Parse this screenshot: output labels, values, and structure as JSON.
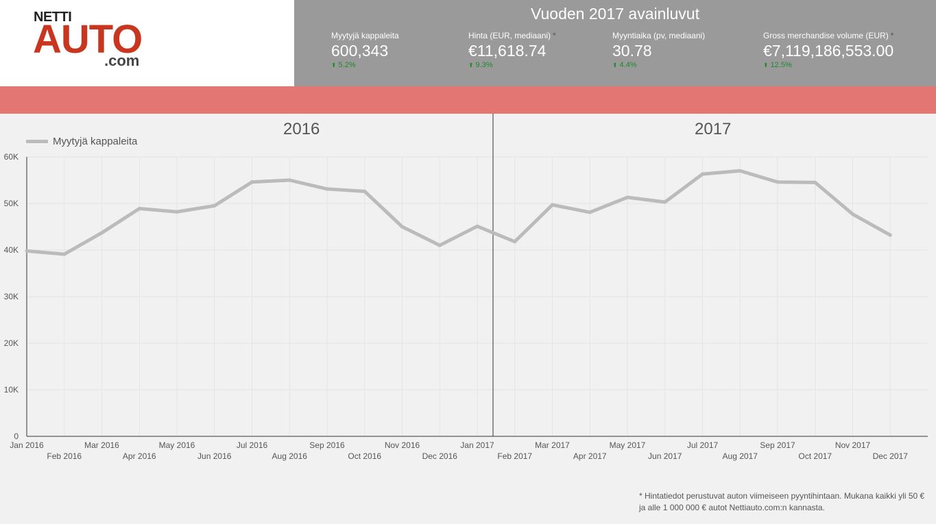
{
  "logo": {
    "top": "NETTI",
    "main": "AUTO",
    "suffix": ".com"
  },
  "kpi": {
    "title": "Vuoden 2017 avainluvut",
    "items": [
      {
        "label": "Myytyjä kappaleita",
        "star": "",
        "value": "600,343",
        "delta": "5.2%"
      },
      {
        "label": "Hinta (EUR, mediaani)",
        "star": "*",
        "value": "€11,618.74",
        "delta": "9.3%"
      },
      {
        "label": "Myyntiaika (pv, mediaani)",
        "star": "",
        "value": "30.78",
        "delta": "4.4%"
      },
      {
        "label": "Gross merchandise volume (EUR)",
        "star": "*",
        "value": "€7,119,186,553.00",
        "delta": "12.5%"
      }
    ],
    "delta_color": "#1d8a2e"
  },
  "colors": {
    "band": "#e37573",
    "panel": "#9a9a9a",
    "line": "#bbbbbb"
  },
  "year_labels": [
    "2016",
    "2017"
  ],
  "chart_data": {
    "type": "line",
    "title": "",
    "legend": "top-left",
    "grid": true,
    "ylim": [
      0,
      60000
    ],
    "yticks": [
      "0",
      "10K",
      "20K",
      "30K",
      "40K",
      "50K",
      "60K"
    ],
    "x": [
      "Jan 2016",
      "Feb 2016",
      "Mar 2016",
      "Apr 2016",
      "May 2016",
      "Jun 2016",
      "Jul 2016",
      "Aug 2016",
      "Sep 2016",
      "Oct 2016",
      "Nov 2016",
      "Dec 2016",
      "Jan 2017",
      "Feb 2017",
      "Mar 2017",
      "Apr 2017",
      "May 2017",
      "Jun 2017",
      "Jul 2017",
      "Aug 2017",
      "Sep 2017",
      "Oct 2017",
      "Nov 2017",
      "Dec 2017"
    ],
    "series": [
      {
        "name": "Myytyjä kappaleita",
        "values": [
          39800,
          39100,
          43700,
          48900,
          48200,
          49500,
          54600,
          55000,
          53100,
          52600,
          45000,
          41000,
          45100,
          41800,
          49700,
          48100,
          51300,
          50300,
          56300,
          57000,
          54600,
          54500,
          47700,
          43200
        ]
      }
    ]
  },
  "footnote": {
    "line1": "* Hintatiedot perustuvat auton viimeiseen pyyntihintaan. Mukana kaikki yli 50 €",
    "line2": "ja alle 1 000 000 € autot Nettiauto.com:n kannasta."
  }
}
